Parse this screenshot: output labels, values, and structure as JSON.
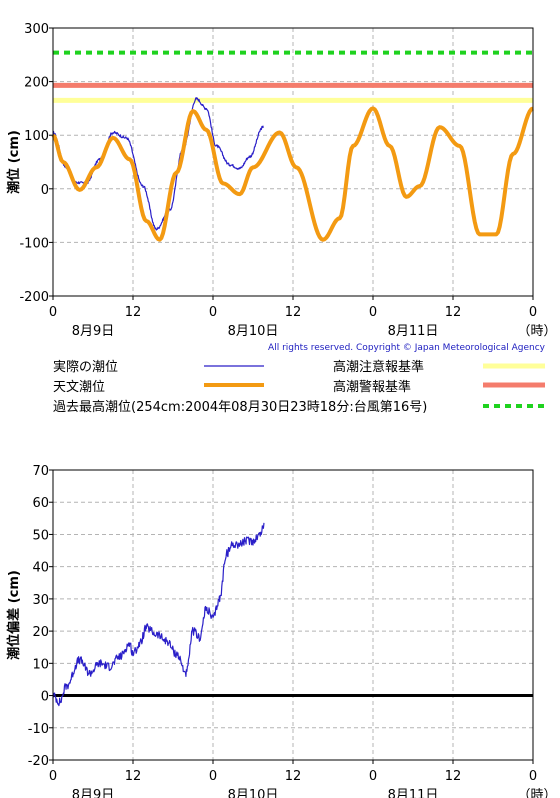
{
  "colors": {
    "observed": "#2a1fc8",
    "astronomical": "#f39a12",
    "caution": "#ffff99",
    "warning": "#f47c6c",
    "record": "#1fd21f",
    "grid": "#b4b4b4"
  },
  "x_ticks": [
    "0",
    "12",
    "0",
    "12",
    "0",
    "12",
    "0"
  ],
  "x_dates": [
    "8月9日",
    "8月10日",
    "8月11日"
  ],
  "x_unit": "（時）",
  "copyright": "All rights reserved. Copyright © Japan Meteorological Agency",
  "legend": {
    "observed": "実際の潮位",
    "astronomical": "天文潮位",
    "caution": "高潮注意報基準",
    "warning": "高潮警報基準",
    "record": "過去最高潮位(254cm:2004年08月30日23時18分:台風第16号)"
  },
  "chart_data": [
    {
      "type": "line",
      "ylabel": "潮位 (cm)",
      "x_unit": "hour",
      "xlim": [
        0,
        72
      ],
      "ylim": [
        -200,
        300
      ],
      "yticks": [
        -200,
        -100,
        0,
        100,
        200,
        300
      ],
      "grid": true,
      "legend_position": "bottom",
      "reference_lines": [
        {
          "name": "高潮注意報基準",
          "value": 165
        },
        {
          "name": "高潮警報基準",
          "value": 193
        },
        {
          "name": "過去最高潮位(254cm:2004年08月30日23時18分:台風第16号)",
          "value": 254
        }
      ],
      "series": [
        {
          "name": "実際の潮位",
          "x": [
            0,
            2,
            3.5,
            5,
            7,
            9,
            11,
            13.5,
            15.5,
            17.5,
            19.5,
            21.5,
            23,
            24.5,
            26.5,
            28,
            29.5,
            31.5
          ],
          "values": [
            105,
            40,
            12,
            10,
            55,
            105,
            95,
            5,
            -75,
            -40,
            75,
            168,
            150,
            80,
            45,
            38,
            60,
            115
          ]
        },
        {
          "name": "天文潮位",
          "x": [
            0,
            1.5,
            4,
            6.5,
            9,
            11.5,
            14,
            16,
            18.5,
            21,
            23,
            25.5,
            28,
            30,
            34,
            36.5,
            40.5,
            43,
            45,
            48,
            50.5,
            53,
            55,
            58,
            61,
            64,
            66.5,
            69,
            72
          ],
          "values": [
            100,
            50,
            -2,
            40,
            95,
            55,
            -60,
            -95,
            30,
            145,
            110,
            10,
            -10,
            40,
            105,
            40,
            -95,
            -55,
            80,
            150,
            80,
            -15,
            5,
            115,
            80,
            -85,
            -85,
            65,
            150
          ]
        }
      ]
    },
    {
      "type": "line",
      "ylabel": "潮位偏差 (cm)",
      "x_unit": "hour",
      "xlim": [
        0,
        72
      ],
      "ylim": [
        -20,
        70
      ],
      "yticks": [
        -20,
        -10,
        0,
        10,
        20,
        30,
        40,
        50,
        60,
        70
      ],
      "grid": true,
      "reference_lines": [
        {
          "value": 0
        }
      ],
      "series": [
        {
          "name": "",
          "x": [
            0,
            1,
            2,
            4,
            5.5,
            7,
            8.5,
            10,
            11.5,
            12,
            13,
            14,
            15.5,
            17,
            18.5,
            20,
            21,
            22,
            23,
            24,
            25,
            26,
            27,
            28,
            29,
            30,
            31,
            31.7
          ],
          "values": [
            0,
            -2,
            3,
            11,
            7,
            10,
            9,
            12,
            16,
            13,
            16,
            21,
            19,
            17,
            13,
            7,
            20,
            18,
            27,
            24,
            30,
            44,
            47,
            47,
            48,
            48,
            50,
            53
          ]
        }
      ]
    }
  ]
}
